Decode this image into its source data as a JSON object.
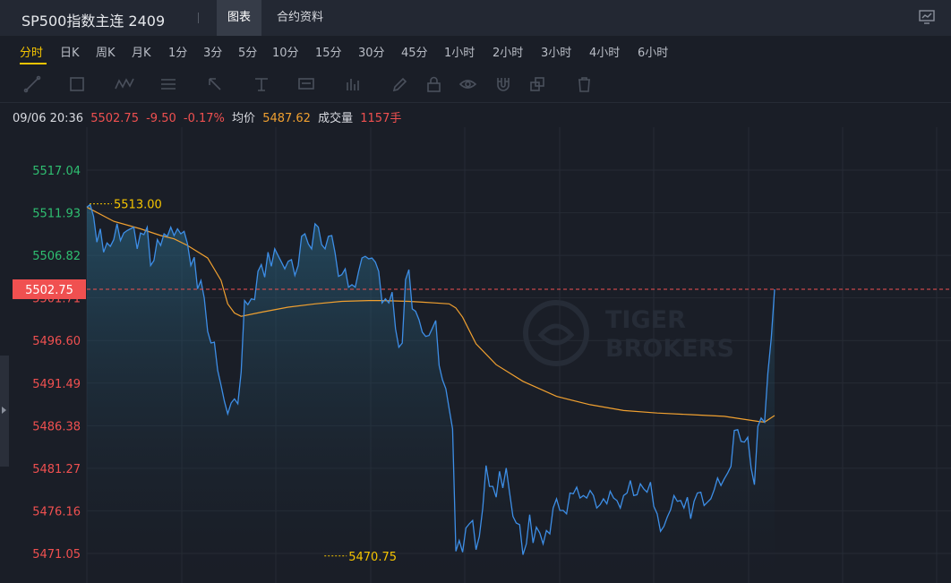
{
  "header": {
    "title": "SP500指数主连 2409",
    "tabs": [
      {
        "label": "图表",
        "active": true
      },
      {
        "label": "合约资料",
        "active": false
      }
    ]
  },
  "periods": [
    "分时",
    "日K",
    "周K",
    "月K",
    "1分",
    "3分",
    "5分",
    "10分",
    "15分",
    "30分",
    "45分",
    "1小时",
    "2小时",
    "3小时",
    "4小时",
    "6小时"
  ],
  "active_period": "分时",
  "toolbar_icons": [
    "line-tool-icon",
    "rect-tool-icon",
    "wave-tool-icon",
    "channel-tool-icon",
    "arrow-tool-icon",
    "text-tool-icon",
    "label-tool-icon",
    "bar-tool-icon",
    "pen-icon",
    "lock-icon",
    "eye-icon",
    "magnet-icon",
    "layers-icon",
    "trash-icon"
  ],
  "info": {
    "datetime": "09/06 20:36",
    "price": "5502.75",
    "change": "-9.50",
    "change_pct": "-0.17%",
    "avg_label": "均价",
    "avg_value": "5487.62",
    "volume_label": "成交量",
    "volume_value": "1157手"
  },
  "colors": {
    "up": "#2fbf71",
    "down": "#f05050",
    "avg": "#f0a030",
    "price_line": "#3d8ee6",
    "highlight": "#f5c400",
    "bg": "#1a1e27"
  },
  "watermark": {
    "line1": "TIGER",
    "line2": "BROKERS"
  },
  "chart_data": {
    "type": "line",
    "y_ticks": [
      "5517.04",
      "5511.93",
      "5506.82",
      "5501.71",
      "5496.60",
      "5491.49",
      "5486.38",
      "5481.27",
      "5476.16",
      "5471.05"
    ],
    "ylim": [
      5467.5,
      5522.2
    ],
    "current_price_label": "5502.75",
    "annotations": [
      {
        "label": "5513.00",
        "value": 5513.0,
        "x": 0
      },
      {
        "label": "5470.75",
        "value": 5470.75,
        "x": 70
      }
    ],
    "series": [
      {
        "kind": "price",
        "x": [
          0,
          1,
          2,
          3,
          4,
          5,
          6,
          7,
          8,
          9,
          10,
          11,
          12,
          13,
          14,
          15,
          16,
          17,
          18,
          19,
          20,
          21,
          22,
          23,
          24,
          25,
          26,
          27,
          28,
          29,
          30,
          31,
          32,
          33,
          34,
          35,
          36,
          37,
          38,
          39,
          40,
          41,
          42,
          43,
          44,
          45,
          46,
          47,
          48,
          49,
          50,
          51,
          52,
          53,
          54,
          55,
          56,
          57,
          58,
          59,
          60,
          61,
          62,
          63,
          64,
          65,
          66,
          67,
          68,
          69,
          70,
          71,
          72,
          73,
          74,
          75,
          76,
          77,
          78,
          79,
          80,
          81,
          82,
          83,
          84,
          85,
          86,
          87,
          88,
          89,
          90,
          91,
          92,
          93,
          94,
          95,
          96,
          97,
          98,
          99,
          100,
          101,
          102,
          103,
          104,
          105,
          106,
          107,
          108,
          109,
          110,
          111,
          112,
          113,
          114,
          115,
          116,
          117,
          118,
          119,
          120,
          121,
          122,
          123,
          124,
          125,
          126,
          127,
          128,
          129,
          130,
          131,
          132,
          133,
          134,
          135,
          136,
          137,
          138,
          139,
          140,
          141,
          142,
          143,
          144,
          145,
          146,
          147,
          148,
          149,
          150,
          151,
          152,
          153,
          154,
          155,
          156,
          157,
          158,
          159,
          160,
          161,
          162,
          163,
          164,
          165,
          166,
          167,
          168,
          169,
          170,
          171,
          172,
          173,
          174,
          175,
          176,
          177,
          178,
          179,
          180,
          181,
          182,
          183,
          184,
          185,
          186,
          187,
          188,
          189,
          190,
          191,
          192,
          193,
          194,
          195,
          196,
          197,
          198,
          199,
          200,
          201,
          202,
          203,
          204,
          205
        ],
        "y": [
          5512.6,
          5512.9,
          5511.5,
          5508.4,
          5510.0,
          5507.2,
          5508.3,
          5507.9,
          5508.7,
          5510.6,
          5508.6,
          5509.5,
          5509.8,
          5510.0,
          5510.2,
          5507.6,
          5509.5,
          5509.3,
          5510.2,
          5505.6,
          5506.2,
          5508.7,
          5508.0,
          5509.4,
          5509.1,
          5510.2,
          5509.2,
          5510.0,
          5509.4,
          5509.7,
          5508.2,
          5505.6,
          5506.6,
          5502.8,
          5503.8,
          5501.7,
          5497.7,
          5496.3,
          5496.4,
          5493.0,
          5491.2,
          5489.3,
          5487.8,
          5489.1,
          5489.6,
          5489.0,
          5492.8,
          5501.4,
          5500.9,
          5501.6,
          5501.5,
          5504.9,
          5505.7,
          5504.2,
          5507.2,
          5505.5,
          5507.6,
          5506.8,
          5506.0,
          5505.2,
          5506.1,
          5506.3,
          5504.4,
          5505.6,
          5509.1,
          5509.4,
          5508.2,
          5507.6,
          5510.6,
          5510.2,
          5508.1,
          5507.6,
          5509.1,
          5509.2,
          5507.1,
          5504.3,
          5504.5,
          5505.2,
          5503.0,
          5503.3,
          5503.0,
          5504.9,
          5506.5,
          5506.7,
          5506.4,
          5506.5,
          5506.0,
          5504.9,
          5501.1,
          5501.6,
          5501.1,
          5502.4,
          5498.0,
          5495.8,
          5496.3,
          5503.9,
          5505.1,
          5500.4,
          5500.1,
          5499.1,
          5497.6,
          5497.1,
          5497.2,
          5498.1,
          5499.0,
          5493.6,
          5491.9,
          5490.8,
          5488.4,
          5486.0,
          5471.3,
          5472.6,
          5471.2,
          5474.1,
          5474.6,
          5475.0,
          5471.5,
          5473.1,
          5476.5,
          5481.6,
          5479.1,
          5479.1,
          5477.8,
          5480.9,
          5478.9,
          5481.3,
          5478.4,
          5475.5,
          5474.7,
          5474.5,
          5470.9,
          5472.2,
          5475.7,
          5472.3,
          5474.2,
          5473.5,
          5472.2,
          5473.8,
          5473.4,
          5476.5,
          5477.6,
          5476.2,
          5476.2,
          5475.8,
          5478.3,
          5478.2,
          5479.0,
          5477.7,
          5478.0,
          5477.7,
          5478.6,
          5478.0,
          5476.5,
          5476.9,
          5477.6,
          5477.0,
          5478.5,
          5477.7,
          5477.4,
          5476.5,
          5478.0,
          5478.3,
          5479.8,
          5478.0,
          5478.1,
          5479.4,
          5478.8,
          5478.4,
          5479.6,
          5476.7,
          5475.8,
          5473.7,
          5474.3,
          5475.4,
          5476.3,
          5478.0,
          5477.3,
          5477.4,
          5476.5,
          5477.8,
          5475.2,
          5477.3,
          5478.3,
          5478.4,
          5476.8,
          5477.2,
          5477.6,
          5478.7,
          5480.1,
          5479.2,
          5480.0,
          5480.7,
          5481.5,
          5485.8,
          5485.9,
          5484.5,
          5484.4,
          5485.0,
          5481.3,
          5479.3,
          5486.3,
          5487.3,
          5486.8,
          5492.7,
          5496.9,
          5502.75
        ]
      },
      {
        "kind": "average",
        "x": [
          0,
          8,
          16,
          22,
          26,
          30,
          36,
          40,
          42,
          44,
          46,
          52,
          60,
          68,
          76,
          84,
          88,
          96,
          100,
          104,
          108,
          110,
          112,
          116,
          122,
          130,
          140,
          150,
          160,
          170,
          180,
          190,
          200,
          202,
          205
        ],
        "y": [
          5512.6,
          5510.9,
          5510.0,
          5509.2,
          5508.8,
          5508.0,
          5506.5,
          5503.8,
          5501.0,
          5499.9,
          5499.5,
          5500.0,
          5500.6,
          5501.0,
          5501.3,
          5501.4,
          5501.4,
          5501.3,
          5501.2,
          5501.1,
          5501.0,
          5500.5,
          5499.4,
          5496.2,
          5493.7,
          5491.7,
          5489.9,
          5488.9,
          5488.2,
          5487.9,
          5487.7,
          5487.5,
          5486.9,
          5486.8,
          5487.6
        ]
      }
    ]
  }
}
